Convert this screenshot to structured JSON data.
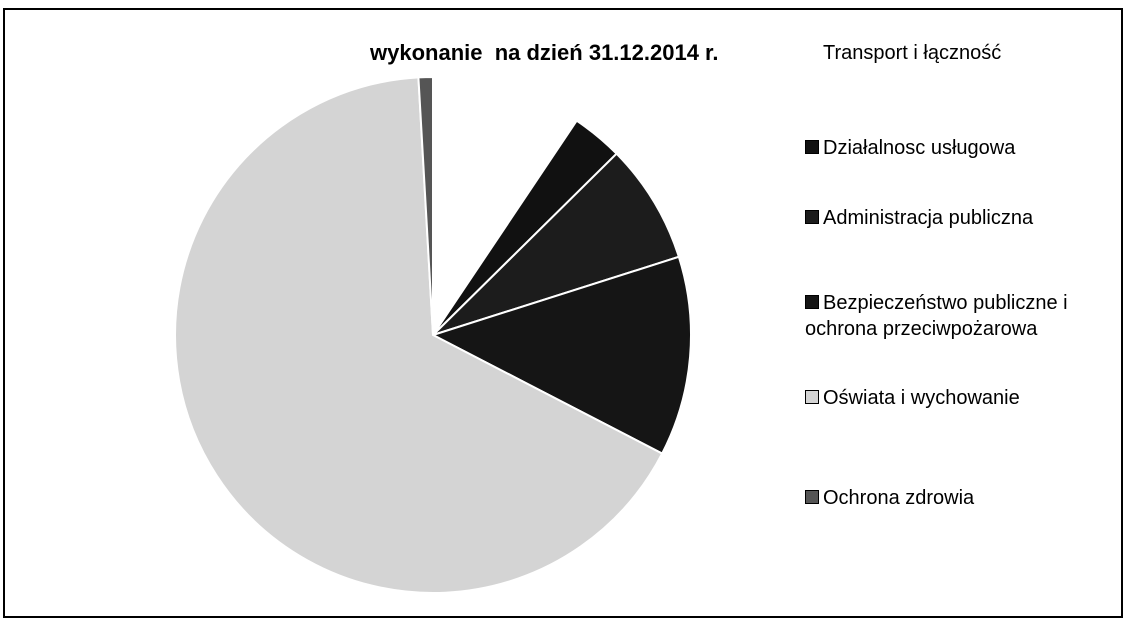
{
  "chart_data": {
    "type": "pie",
    "title": "wykonanie  na dzień 31.12.2014 r.",
    "categories": [
      "Transport i łączność",
      "Działalnosc usługowa",
      "Administracja publiczna",
      "Bezpieczeństwo publiczne i ochrona przeciwpożarowa",
      "Oświata i wychowanie",
      "Ochrona zdrowia"
    ],
    "values": [
      9.4,
      3.2,
      7.5,
      12.5,
      66.5,
      0.9
    ],
    "colors": [
      "#ffffff",
      "#111111",
      "#1c1c1c",
      "#151515",
      "#d4d4d4",
      "#555555"
    ],
    "legend": "right"
  }
}
